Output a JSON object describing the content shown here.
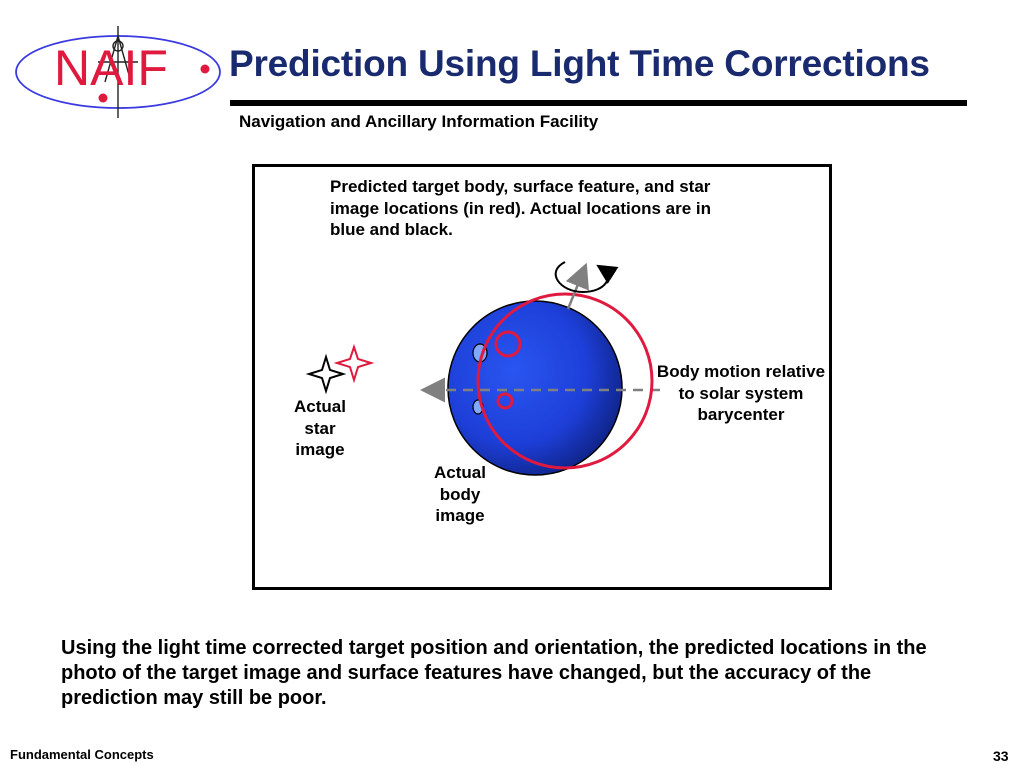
{
  "header": {
    "logo_text": "NAIF",
    "title": "Prediction Using Light Time Corrections",
    "subtitle": "Navigation and Ancillary Information Facility"
  },
  "diagram": {
    "caption": "Predicted target body, surface feature, and star image locations (in red). Actual locations are in blue and black.",
    "body_motion_label": "Body motion relative to solar system barycenter",
    "star_label": "Actual star image",
    "body_label": "Actual body image",
    "colors": {
      "actual_body": "#1d3fd8",
      "predicted": "#e0193f",
      "motion_arrow": "#808080",
      "star_outline": "#000000"
    }
  },
  "text": {
    "bottom": "Using the light time corrected target position and orientation, the predicted locations in the photo of the target image and surface features have changed, but the accuracy of the prediction may still be poor."
  },
  "footer": {
    "left": "Fundamental Concepts",
    "page_number": "33"
  }
}
